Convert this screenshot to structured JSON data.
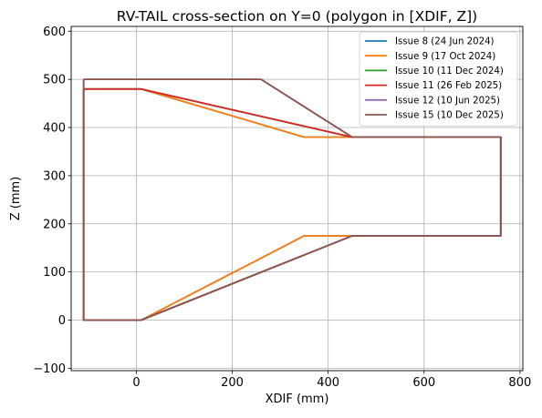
{
  "chart_data": {
    "type": "line",
    "title": "RV-TAIL cross-section on Y=0 (polygon in [XDIF, Z])",
    "xlabel": "XDIF (mm)",
    "ylabel": "Z (mm)",
    "xlim": [
      -136,
      806
    ],
    "ylim": [
      -105,
      610
    ],
    "xticks": [
      0,
      200,
      400,
      600,
      800
    ],
    "yticks": [
      -100,
      0,
      100,
      200,
      300,
      400,
      500,
      600
    ],
    "grid": true,
    "legend_position": "top-right",
    "series": [
      {
        "name": "Issue 8 (24 Jun 2024)",
        "color": "#1f77b4",
        "x": [
          -110,
          10,
          350,
          760,
          760,
          350,
          10,
          -110,
          -110
        ],
        "y": [
          480,
          480,
          380,
          380,
          175,
          175,
          0,
          0,
          480
        ]
      },
      {
        "name": "Issue 9 (17 Oct 2024)",
        "color": "#ff7f0e",
        "x": [
          -110,
          10,
          350,
          760,
          760,
          350,
          10,
          -110,
          -110
        ],
        "y": [
          480,
          480,
          380,
          380,
          175,
          175,
          0,
          0,
          480
        ]
      },
      {
        "name": "Issue 10 (11 Dec 2024)",
        "color": "#2ca02c",
        "x": [
          -110,
          10,
          450,
          760,
          760,
          450,
          10,
          -110,
          -110
        ],
        "y": [
          480,
          480,
          380,
          380,
          175,
          175,
          0,
          0,
          480
        ]
      },
      {
        "name": "Issue 11 (26 Feb 2025)",
        "color": "#d62728",
        "x": [
          -110,
          10,
          450,
          760,
          760,
          450,
          10,
          -110,
          -110
        ],
        "y": [
          480,
          480,
          380,
          380,
          175,
          175,
          0,
          0,
          480
        ]
      },
      {
        "name": "Issue 12 (10 Jun 2025)",
        "color": "#9467bd",
        "x": [
          -110,
          260,
          450,
          760,
          760,
          450,
          10,
          -110,
          -110
        ],
        "y": [
          500,
          500,
          380,
          380,
          175,
          175,
          0,
          0,
          500
        ]
      },
      {
        "name": "Issue 15 (10 Dec 2025)",
        "color": "#8c564b",
        "x": [
          -110,
          260,
          450,
          760,
          760,
          450,
          10,
          -110,
          -110
        ],
        "y": [
          500,
          500,
          380,
          380,
          175,
          175,
          0,
          0,
          500
        ]
      }
    ]
  }
}
